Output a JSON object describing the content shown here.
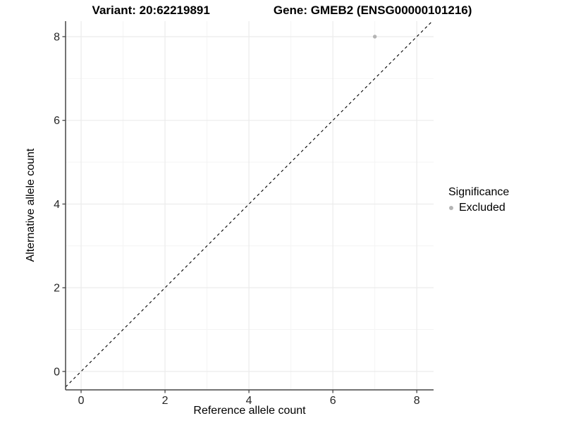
{
  "title": {
    "left": "Variant: 20:62219891",
    "right": "Gene: GMEB2 (ENSG00000101216)"
  },
  "chart_data": {
    "type": "scatter",
    "title": "Variant: 20:62219891    Gene: GMEB2 (ENSG00000101216)",
    "xlabel": "Reference allele count",
    "ylabel": "Alternative allele count",
    "x_ticks": [
      0,
      2,
      4,
      6,
      8
    ],
    "y_ticks": [
      0,
      2,
      4,
      6,
      8
    ],
    "x_minor_ticks": [
      1,
      3,
      5,
      7
    ],
    "y_minor_ticks": [
      1,
      3,
      5,
      7
    ],
    "xlim": [
      -0.37,
      8.4
    ],
    "ylim": [
      -0.44,
      8.37
    ],
    "grid": true,
    "legend_position": "right",
    "points": [
      {
        "x": 7,
        "y": 8,
        "series": "Excluded"
      }
    ],
    "reference_line": {
      "slope": 1,
      "intercept": 0,
      "style": "dashed",
      "color": "#000000"
    },
    "legend": {
      "title": "Significance",
      "entries": [
        {
          "label": "Excluded",
          "color": "#b4b4b4"
        }
      ]
    },
    "colors": {
      "point": "#b4b4b4",
      "grid_major": "#ebebeb",
      "grid_minor": "#f4f4f4",
      "axis_line": "#464646",
      "tick_text": "#262626"
    }
  }
}
